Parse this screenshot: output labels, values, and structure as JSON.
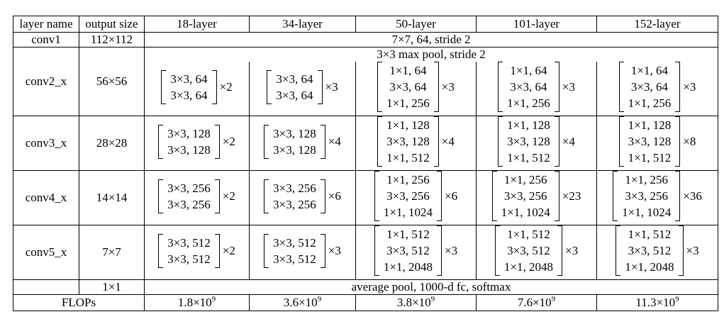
{
  "headers": [
    "layer name",
    "output size",
    "18-layer",
    "34-layer",
    "50-layer",
    "101-layer",
    "152-layer"
  ],
  "conv1": {
    "name": "conv1",
    "size": "112×112",
    "desc": "7×7, 64, stride 2"
  },
  "pool": {
    "desc": "3×3 max pool, stride 2"
  },
  "stages": [
    {
      "name": "conv2_x",
      "size": "56×56",
      "blocks": [
        {
          "lines": [
            "3×3, 64",
            "3×3, 64"
          ],
          "mult": "×2"
        },
        {
          "lines": [
            "3×3, 64",
            "3×3, 64"
          ],
          "mult": "×3"
        },
        {
          "lines": [
            "1×1, 64",
            "3×3, 64",
            "1×1, 256"
          ],
          "mult": "×3"
        },
        {
          "lines": [
            "1×1, 64",
            "3×3, 64",
            "1×1, 256"
          ],
          "mult": "×3"
        },
        {
          "lines": [
            "1×1, 64",
            "3×3, 64",
            "1×1, 256"
          ],
          "mult": "×3"
        }
      ]
    },
    {
      "name": "conv3_x",
      "size": "28×28",
      "blocks": [
        {
          "lines": [
            "3×3, 128",
            "3×3, 128"
          ],
          "mult": "×2"
        },
        {
          "lines": [
            "3×3, 128",
            "3×3, 128"
          ],
          "mult": "×4"
        },
        {
          "lines": [
            "1×1, 128",
            "3×3, 128",
            "1×1, 512"
          ],
          "mult": "×4"
        },
        {
          "lines": [
            "1×1, 128",
            "3×3, 128",
            "1×1, 512"
          ],
          "mult": "×4"
        },
        {
          "lines": [
            "1×1, 128",
            "3×3, 128",
            "1×1, 512"
          ],
          "mult": "×8"
        }
      ]
    },
    {
      "name": "conv4_x",
      "size": "14×14",
      "blocks": [
        {
          "lines": [
            "3×3, 256",
            "3×3, 256"
          ],
          "mult": "×2"
        },
        {
          "lines": [
            "3×3, 256",
            "3×3, 256"
          ],
          "mult": "×6"
        },
        {
          "lines": [
            "1×1, 256",
            "3×3, 256",
            "1×1, 1024"
          ],
          "mult": "×6"
        },
        {
          "lines": [
            "1×1, 256",
            "3×3, 256",
            "1×1, 1024"
          ],
          "mult": "×23"
        },
        {
          "lines": [
            "1×1, 256",
            "3×3, 256",
            "1×1, 1024"
          ],
          "mult": "×36"
        }
      ]
    },
    {
      "name": "conv5_x",
      "size": "7×7",
      "blocks": [
        {
          "lines": [
            "3×3, 512",
            "3×3, 512"
          ],
          "mult": "×2"
        },
        {
          "lines": [
            "3×3, 512",
            "3×3, 512"
          ],
          "mult": "×3"
        },
        {
          "lines": [
            "1×1, 512",
            "3×3, 512",
            "1×1, 2048"
          ],
          "mult": "×3"
        },
        {
          "lines": [
            "1×1, 512",
            "3×3, 512",
            "1×1, 2048"
          ],
          "mult": "×3"
        },
        {
          "lines": [
            "1×1, 512",
            "3×3, 512",
            "1×1, 2048"
          ],
          "mult": "×3"
        }
      ]
    }
  ],
  "final": {
    "size": "1×1",
    "desc": "average pool, 1000-d fc, softmax"
  },
  "flops": {
    "label": "FLOPs",
    "values": [
      {
        "mantissa": "1.8×10",
        "exp": "9"
      },
      {
        "mantissa": "3.6×10",
        "exp": "9"
      },
      {
        "mantissa": "3.8×10",
        "exp": "9"
      },
      {
        "mantissa": "7.6×10",
        "exp": "9"
      },
      {
        "mantissa": "11.3×10",
        "exp": "9"
      }
    ]
  }
}
